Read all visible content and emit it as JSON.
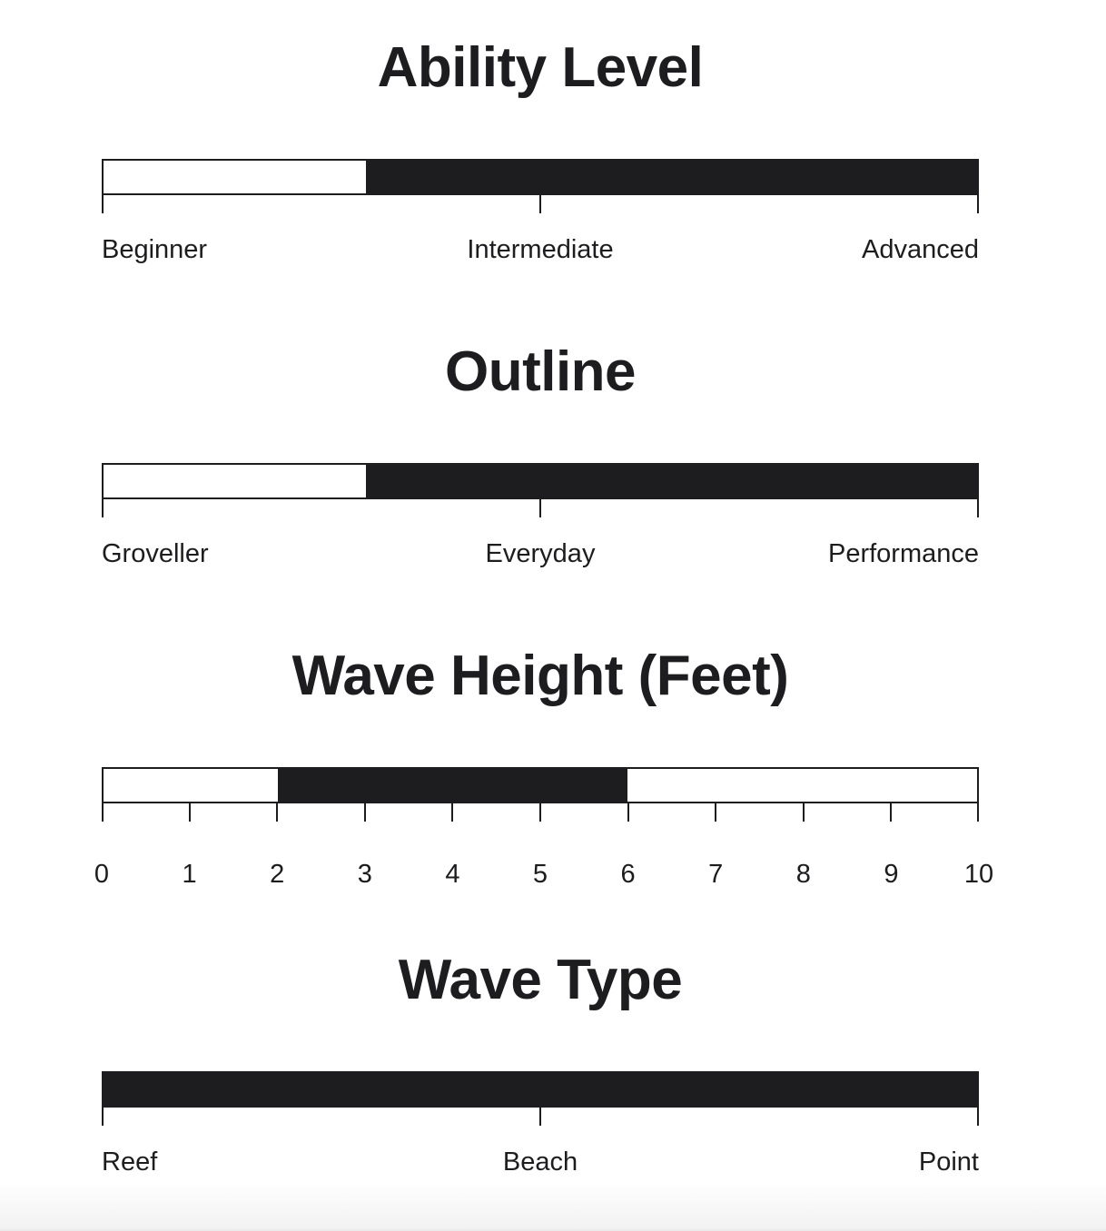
{
  "page": {
    "background": "#ffffff",
    "ink_color": "#1d1d1f",
    "bottom_fade_color": "#f2f2f2"
  },
  "chart_data": [
    {
      "type": "range_bar",
      "title": "Ability Level",
      "categories": [
        "Beginner",
        "Intermediate",
        "Advanced"
      ],
      "tick_pct": [
        0,
        50,
        100
      ],
      "range_pct": [
        30,
        100
      ],
      "fill_color": "#1d1d1f",
      "track_color": "#ffffff"
    },
    {
      "type": "range_bar",
      "title": "Outline",
      "categories": [
        "Groveller",
        "Everyday",
        "Performance"
      ],
      "tick_pct": [
        0,
        50,
        100
      ],
      "range_pct": [
        30,
        100
      ],
      "fill_color": "#1d1d1f",
      "track_color": "#ffffff"
    },
    {
      "type": "range_bar",
      "title": "Wave Height (Feet)",
      "xlim": [
        0,
        10
      ],
      "tick_labels": [
        "0",
        "1",
        "2",
        "3",
        "4",
        "5",
        "6",
        "7",
        "8",
        "9",
        "10"
      ],
      "tick_pct": [
        0,
        10,
        20,
        30,
        40,
        50,
        60,
        70,
        80,
        90,
        100
      ],
      "range_values": [
        2,
        6
      ],
      "range_pct": [
        20,
        60
      ],
      "fill_color": "#1d1d1f",
      "track_color": "#ffffff"
    },
    {
      "type": "range_bar",
      "title": "Wave Type",
      "categories": [
        "Reef",
        "Beach",
        "Point"
      ],
      "tick_pct": [
        0,
        50,
        100
      ],
      "range_pct": [
        0,
        100
      ],
      "fill_color": "#1d1d1f",
      "track_color": "#ffffff"
    }
  ]
}
